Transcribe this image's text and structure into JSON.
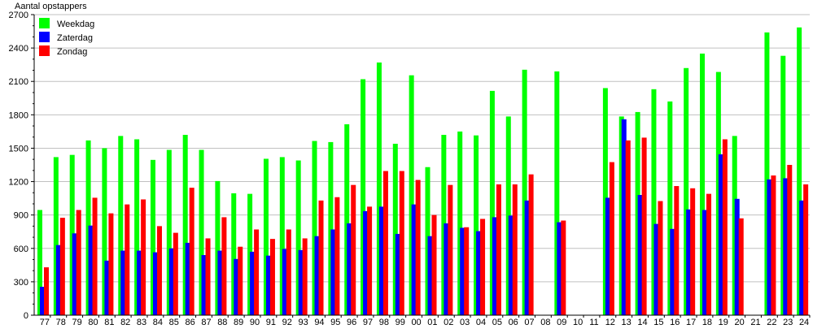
{
  "chart_data": {
    "type": "bar",
    "title": "",
    "xlabel": "",
    "ylabel": "Aantal opstappers",
    "ylim": [
      0,
      2700
    ],
    "yticks": [
      0,
      300,
      600,
      900,
      1200,
      1500,
      1800,
      2100,
      2400,
      2700
    ],
    "grid": true,
    "legend_position": "top-left",
    "categories": [
      "77",
      "78",
      "79",
      "80",
      "81",
      "82",
      "83",
      "84",
      "85",
      "86",
      "87",
      "88",
      "89",
      "90",
      "91",
      "92",
      "93",
      "94",
      "95",
      "96",
      "97",
      "98",
      "99",
      "00",
      "01",
      "02",
      "03",
      "04",
      "05",
      "06",
      "07",
      "08",
      "09",
      "10",
      "11",
      "12",
      "13",
      "14",
      "15",
      "16",
      "17",
      "18",
      "19",
      "20",
      "21",
      "22",
      "23",
      "24"
    ],
    "series": [
      {
        "name": "Weekdag",
        "color": "#00ff00",
        "values": [
          945,
          1420,
          1440,
          1570,
          1500,
          1610,
          1580,
          1395,
          1485,
          1620,
          1485,
          1205,
          1095,
          1090,
          1405,
          1420,
          1390,
          1565,
          1555,
          1715,
          2120,
          2270,
          1540,
          2155,
          1330,
          1620,
          1650,
          1615,
          2015,
          1785,
          2205,
          null,
          2190,
          null,
          null,
          2040,
          1785,
          1825,
          2030,
          1920,
          2220,
          2350,
          2185,
          1610,
          null,
          2540,
          2330,
          2585
        ]
      },
      {
        "name": "Zaterdag",
        "color": "#0000ff",
        "values": [
          255,
          630,
          735,
          805,
          490,
          580,
          580,
          565,
          600,
          650,
          540,
          580,
          505,
          570,
          535,
          595,
          585,
          710,
          770,
          825,
          935,
          975,
          730,
          995,
          710,
          825,
          785,
          755,
          880,
          895,
          1030,
          null,
          835,
          null,
          null,
          1055,
          1760,
          1080,
          820,
          775,
          950,
          945,
          1445,
          1045,
          null,
          1220,
          1230,
          1030
        ]
      },
      {
        "name": "Zondag",
        "color": "#ff0000",
        "values": [
          430,
          875,
          945,
          1055,
          915,
          995,
          1040,
          800,
          740,
          1145,
          690,
          880,
          615,
          770,
          685,
          770,
          690,
          1030,
          1060,
          1170,
          975,
          1295,
          1295,
          1215,
          900,
          1170,
          790,
          865,
          1175,
          1175,
          1265,
          null,
          850,
          null,
          null,
          1375,
          1570,
          1595,
          1025,
          1160,
          1140,
          1090,
          1580,
          870,
          null,
          1255,
          1350,
          1175
        ]
      }
    ]
  }
}
